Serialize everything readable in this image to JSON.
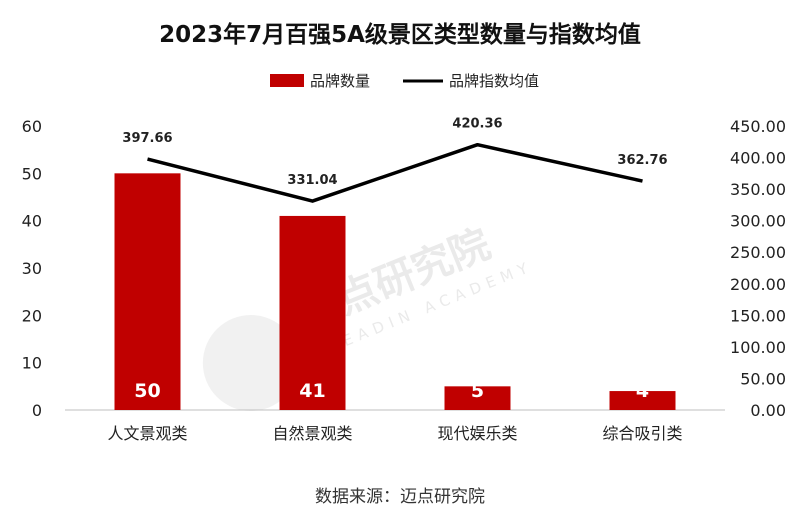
{
  "chart_data": {
    "type": "bar",
    "title": "2023年7月百强5A级景区类型数量与指数均值",
    "categories": [
      "人文景观类",
      "自然景观类",
      "现代娱乐类",
      "综合吸引类"
    ],
    "series": [
      {
        "name": "品牌数量",
        "type": "bar",
        "axis": "left",
        "color": "#c00000",
        "values": [
          50,
          41,
          5,
          4
        ]
      },
      {
        "name": "品牌指数均值",
        "type": "line",
        "axis": "right",
        "color": "#000000",
        "values": [
          397.66,
          331.04,
          420.36,
          362.76
        ]
      }
    ],
    "value_labels": [
      "397.66",
      "331.04",
      "420.36",
      "362.76"
    ],
    "y_left": {
      "ticks": [
        "0",
        "10",
        "20",
        "30",
        "40",
        "50",
        "60"
      ],
      "range": [
        0,
        60
      ]
    },
    "y_right": {
      "ticks": [
        "0.00",
        "50.00",
        "100.00",
        "150.00",
        "200.00",
        "250.00",
        "300.00",
        "350.00",
        "400.00",
        "450.00"
      ],
      "range": [
        0,
        450
      ]
    },
    "legend_position": "top-center",
    "grid": false,
    "source": "数据来源：迈点研究院"
  },
  "watermark": {
    "text": "迈点研究院",
    "subtext": "MEADIN ACADEMY"
  }
}
